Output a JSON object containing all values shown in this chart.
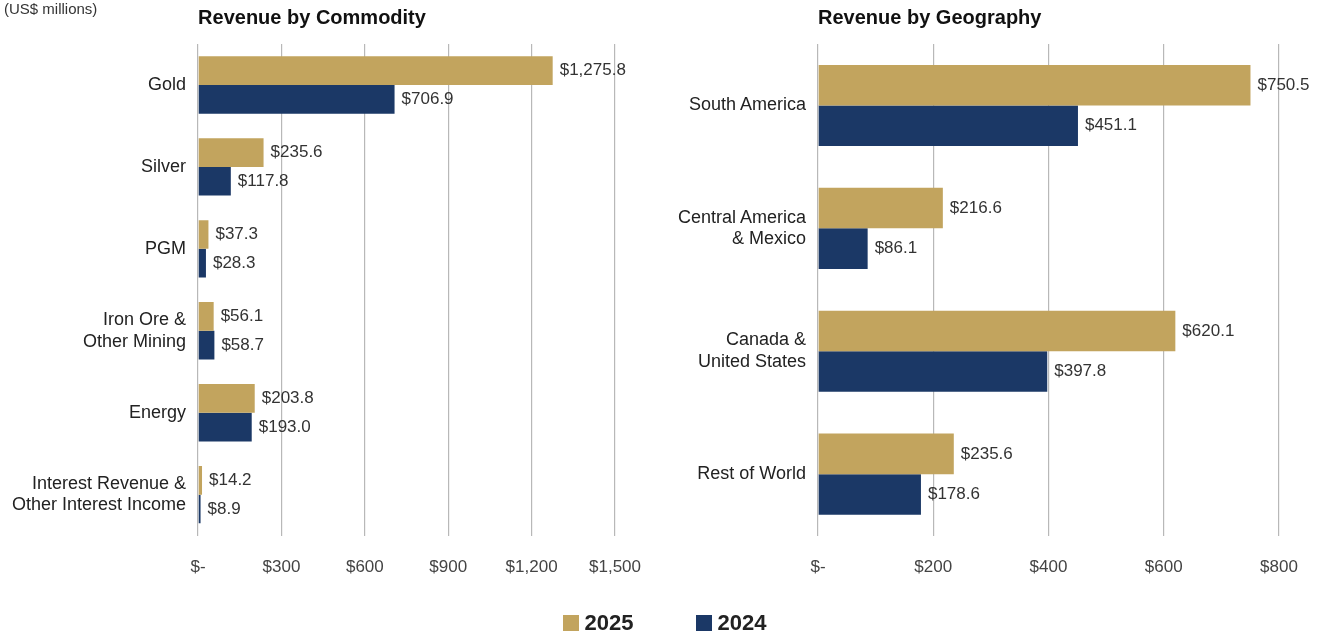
{
  "chart_data": [
    {
      "type": "bar",
      "orientation": "horizontal",
      "title": "Revenue by Commodity",
      "annotations": [
        "(US$ millions)"
      ],
      "categories": [
        "Gold",
        "Silver",
        "PGM",
        "Iron Ore &\nOther Mining",
        "Energy",
        "Interest Revenue &\nOther Interest Income"
      ],
      "series": [
        {
          "name": "2025",
          "color": "#c2a45e",
          "values": [
            1275.8,
            235.6,
            37.3,
            56.1,
            203.8,
            14.2
          ],
          "value_labels": [
            "$1,275.8",
            "$235.6",
            "$37.3",
            "$56.1",
            "$203.8",
            "$14.2"
          ]
        },
        {
          "name": "2024",
          "color": "#1b3866",
          "values": [
            706.9,
            117.8,
            28.3,
            58.7,
            193.0,
            8.9
          ],
          "value_labels": [
            "$706.9",
            "$117.8",
            "$28.3",
            "$58.7",
            "$193.0",
            "$8.9"
          ]
        }
      ],
      "xlim": [
        0,
        1500
      ],
      "xticks": [
        {
          "value": 0,
          "label": "$-"
        },
        {
          "value": 300,
          "label": "$300"
        },
        {
          "value": 600,
          "label": "$600"
        },
        {
          "value": 900,
          "label": "$900"
        },
        {
          "value": 1200,
          "label": "$1,200"
        },
        {
          "value": 1500,
          "label": "$1,500"
        }
      ],
      "grid": "x",
      "legend": "bottom"
    },
    {
      "type": "bar",
      "orientation": "horizontal",
      "title": "Revenue by Geography",
      "categories": [
        "South America",
        "Central America\n& Mexico",
        "Canada &\nUnited States",
        "Rest of World"
      ],
      "series": [
        {
          "name": "2025",
          "color": "#c2a45e",
          "values": [
            750.5,
            216.6,
            620.1,
            235.6
          ],
          "value_labels": [
            "$750.5",
            "$216.6",
            "$620.1",
            "$235.6"
          ]
        },
        {
          "name": "2024",
          "color": "#1b3866",
          "values": [
            451.1,
            86.1,
            397.8,
            178.6
          ],
          "value_labels": [
            "$451.1",
            "$86.1",
            "$397.8",
            "$178.6"
          ]
        }
      ],
      "xlim": [
        0,
        800
      ],
      "xticks": [
        {
          "value": 0,
          "label": "$-"
        },
        {
          "value": 200,
          "label": "$200"
        },
        {
          "value": 400,
          "label": "$400"
        },
        {
          "value": 600,
          "label": "$600"
        },
        {
          "value": 800,
          "label": "$800"
        }
      ],
      "grid": "x"
    }
  ]
}
